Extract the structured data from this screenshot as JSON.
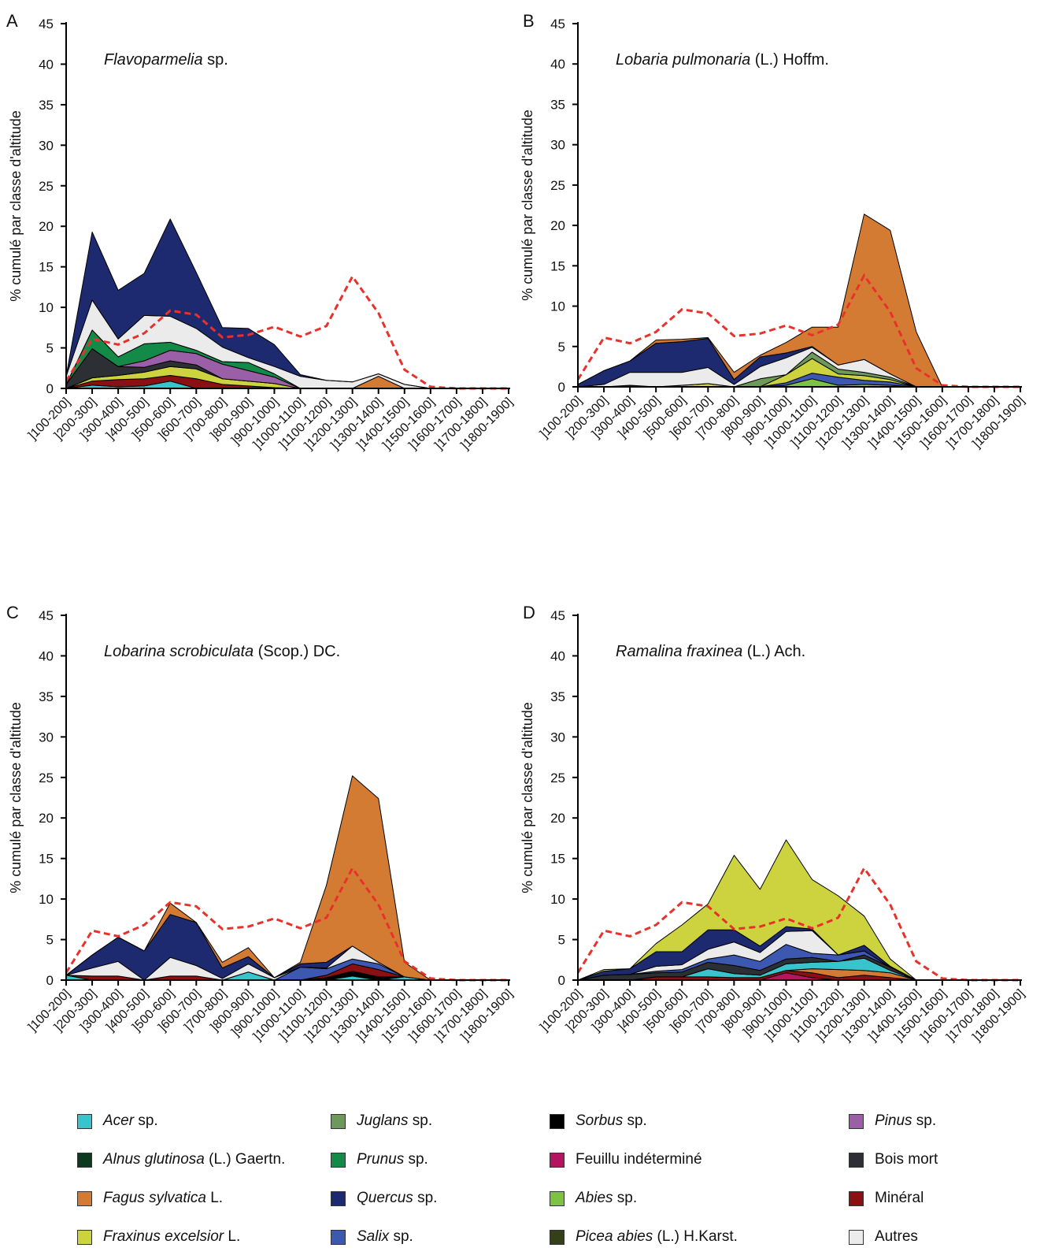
{
  "categories": [
    "]100-200]",
    "]200-300]",
    "]300-400]",
    "]400-500]",
    "]500-600]",
    "]600-700]",
    "]700-800]",
    "]800-900]",
    "]900-1000]",
    "]1000-1100]",
    "]1100-1200]",
    "]1200-1300]",
    "]1300-1400]",
    "]1400-1500]",
    "]1500-1600]",
    "]1600-1700]",
    "]1700-1800]",
    "]1800-1900]"
  ],
  "legend": [
    {
      "key": "acer",
      "italic": "Acer",
      "rest": " sp.",
      "color": "#38c4cc"
    },
    {
      "key": "alnus",
      "italic": "Alnus glutinosa",
      "rest": " (L.) Gaertn.",
      "color": "#0b3a1e"
    },
    {
      "key": "fagus",
      "italic": "Fagus sylvatica",
      "rest": " L.",
      "color": "#d47b33"
    },
    {
      "key": "fraxinus",
      "italic": "Fraxinus excelsior",
      "rest": " L.",
      "color": "#ccd33f"
    },
    {
      "key": "juglans",
      "italic": "Juglans",
      "rest": " sp.",
      "color": "#6d9a5a"
    },
    {
      "key": "prunus",
      "italic": "Prunus",
      "rest": " sp.",
      "color": "#148a49"
    },
    {
      "key": "quercus",
      "italic": "Quercus",
      "rest": " sp.",
      "color": "#1d2a6f"
    },
    {
      "key": "salix",
      "italic": "Salix",
      "rest": " sp.",
      "color": "#3c58b0"
    },
    {
      "key": "sorbus",
      "italic": "Sorbus",
      "rest": " sp.",
      "color": "#000000"
    },
    {
      "key": "feuillu",
      "italic": "",
      "rest": "Feuillu indéterminé",
      "color": "#b4155f"
    },
    {
      "key": "abies",
      "italic": "Abies",
      "rest": " sp.",
      "color": "#7dc242"
    },
    {
      "key": "picea",
      "italic": "Picea abies",
      "rest": " (L.) H.Karst.",
      "color": "#34401a"
    },
    {
      "key": "pinus",
      "italic": "Pinus",
      "rest": " sp.",
      "color": "#9b5fa8"
    },
    {
      "key": "bois",
      "italic": "",
      "rest": "Bois mort",
      "color": "#2c2f33"
    },
    {
      "key": "mineral",
      "italic": "",
      "rest": "Minéral",
      "color": "#8b1013"
    },
    {
      "key": "autres",
      "italic": "",
      "rest": "Autres",
      "color": "#ebebeb"
    }
  ],
  "reference_line": {
    "color": "#e8312b",
    "style": "dashed"
  },
  "chart_data": [
    {
      "panel": "A",
      "type": "area",
      "stacked": true,
      "title_italic": "Flavoparmelia",
      "title_rest": " sp.",
      "ylabel": "% cumulé par classe d'altitude",
      "ylim": [
        0,
        45
      ],
      "yticks": [
        0,
        5,
        10,
        15,
        20,
        25,
        30,
        35,
        40,
        45
      ],
      "series": [
        {
          "key": "acer",
          "values": [
            0,
            0.4,
            0.2,
            0.3,
            0.9,
            0,
            0,
            0,
            0,
            0,
            0,
            0,
            0,
            0,
            0,
            0,
            0,
            0
          ]
        },
        {
          "key": "mineral",
          "values": [
            0,
            0.5,
            0.9,
            0.9,
            0.7,
            1.2,
            0.5,
            0.3,
            0.1,
            0,
            0,
            0,
            0,
            0,
            0,
            0,
            0,
            0
          ]
        },
        {
          "key": "fraxinus",
          "values": [
            0,
            0.4,
            0.5,
            0.8,
            1.1,
            1.2,
            0.7,
            0.6,
            0.5,
            0,
            0,
            0,
            0,
            0,
            0,
            0,
            0,
            0
          ]
        },
        {
          "key": "bois",
          "values": [
            0.5,
            3.6,
            1.1,
            0.6,
            0.7,
            0.5,
            0,
            0,
            0,
            0,
            0,
            0,
            0,
            0,
            0,
            0,
            0,
            0
          ]
        },
        {
          "key": "pinus",
          "values": [
            0,
            0,
            0,
            0.8,
            1.3,
            1.4,
            1.8,
            1.3,
            0.8,
            0,
            0,
            0,
            0,
            0,
            0,
            0,
            0,
            0
          ]
        },
        {
          "key": "prunus",
          "values": [
            0,
            2.3,
            1.2,
            2.1,
            1.0,
            0.4,
            0.3,
            1.0,
            0.4,
            0,
            0,
            0,
            0,
            0,
            0,
            0,
            0,
            0
          ]
        },
        {
          "key": "fagus",
          "values": [
            0,
            0,
            0,
            0,
            0,
            0,
            0,
            0,
            0,
            0,
            0,
            0,
            1.5,
            0,
            0,
            0,
            0,
            0
          ]
        },
        {
          "key": "autres",
          "values": [
            1.0,
            3.7,
            2.2,
            3.5,
            3.2,
            2.7,
            1.8,
            0.6,
            0.9,
            1.5,
            1.0,
            0.8,
            0.3,
            0.5,
            0,
            0,
            0,
            0
          ]
        },
        {
          "key": "quercus",
          "values": [
            0,
            8.4,
            6.0,
            5.2,
            12.0,
            6.9,
            2.4,
            3.6,
            2.7,
            0.2,
            0,
            0,
            0,
            0,
            0,
            0,
            0,
            0
          ]
        }
      ],
      "reference": [
        0.9,
        6.1,
        5.4,
        6.8,
        9.6,
        9.1,
        6.3,
        6.6,
        7.6,
        6.4,
        7.7,
        13.8,
        9.3,
        2.3,
        0.2,
        0,
        0,
        0
      ]
    },
    {
      "panel": "B",
      "type": "area",
      "stacked": true,
      "title_italic": "Lobaria pulmonaria",
      "title_rest": " (L.) Hoffm.",
      "ylabel": "% cumulé par classe d'altitude",
      "ylim": [
        0,
        45
      ],
      "yticks": [
        0,
        5,
        10,
        15,
        20,
        25,
        30,
        35,
        40,
        45
      ],
      "series": [
        {
          "key": "abies",
          "values": [
            0,
            0,
            0,
            0,
            0,
            0,
            0,
            0,
            0.2,
            1.0,
            0.2,
            0.3,
            0.2,
            0,
            0,
            0,
            0,
            0
          ]
        },
        {
          "key": "salix",
          "values": [
            0,
            0,
            0.2,
            0,
            0,
            0,
            0,
            0,
            0.3,
            0.7,
            1.0,
            0.5,
            0.4,
            0,
            0,
            0,
            0,
            0
          ]
        },
        {
          "key": "fraxinus",
          "values": [
            0,
            0,
            0,
            0,
            0.2,
            0.4,
            0,
            0,
            1.0,
            1.8,
            0.4,
            0.6,
            0.3,
            0,
            0,
            0,
            0,
            0
          ]
        },
        {
          "key": "juglans",
          "values": [
            0,
            0,
            0,
            0,
            0,
            0,
            0,
            1.0,
            0,
            0.8,
            0.6,
            0.4,
            0.3,
            0,
            0,
            0,
            0,
            0
          ]
        },
        {
          "key": "autres",
          "values": [
            0,
            0.3,
            1.6,
            1.8,
            1.6,
            2.0,
            0.3,
            1.5,
            2.1,
            0.6,
            0.5,
            1.6,
            0.4,
            0,
            0,
            0,
            0,
            0
          ]
        },
        {
          "key": "quercus",
          "values": [
            0.3,
            1.7,
            1.4,
            3.6,
            3.8,
            3.6,
            0.6,
            1.2,
            0.6,
            0.1,
            0,
            0,
            0,
            0,
            0,
            0,
            0,
            0
          ]
        },
        {
          "key": "fagus",
          "values": [
            0,
            0,
            0,
            0.4,
            0.3,
            0.1,
            0.9,
            0.2,
            1.3,
            2.4,
            4.7,
            18.0,
            17.8,
            6.8,
            0,
            0,
            0,
            0
          ]
        }
      ],
      "reference": [
        0.9,
        6.1,
        5.4,
        6.8,
        9.6,
        9.1,
        6.3,
        6.6,
        7.6,
        6.4,
        7.7,
        13.8,
        9.3,
        2.3,
        0.2,
        0,
        0,
        0
      ]
    },
    {
      "panel": "C",
      "type": "area",
      "stacked": true,
      "title_italic": "Lobarina scrobiculata",
      "title_rest": " (Scop.) DC.",
      "ylabel": "% cumulé par classe d'altitude",
      "ylim": [
        0,
        45
      ],
      "yticks": [
        0,
        5,
        10,
        15,
        20,
        25,
        30,
        35,
        40,
        45
      ],
      "series": [
        {
          "key": "acer",
          "values": [
            0.6,
            0,
            0,
            0,
            0,
            0,
            0,
            1.0,
            0,
            0,
            0,
            0.5,
            0,
            0.4,
            0,
            0,
            0,
            0
          ]
        },
        {
          "key": "sorbus",
          "values": [
            0,
            0,
            0,
            0,
            0,
            0,
            0,
            0,
            0,
            0,
            0.3,
            0.6,
            0.4,
            0,
            0,
            0,
            0,
            0
          ]
        },
        {
          "key": "mineral",
          "values": [
            0,
            0.5,
            0.5,
            0,
            0.5,
            0.5,
            0,
            0,
            0,
            0,
            0.3,
            0.9,
            0.9,
            0,
            0,
            0,
            0,
            0
          ]
        },
        {
          "key": "salix",
          "values": [
            0,
            0,
            0,
            0,
            0,
            0,
            0,
            0,
            0,
            1.6,
            0.8,
            0.6,
            0.7,
            0,
            0,
            0,
            0,
            0
          ]
        },
        {
          "key": "autres",
          "values": [
            0,
            1.0,
            1.8,
            0,
            2.3,
            1.3,
            0.2,
            1.0,
            0.3,
            0,
            0.1,
            1.6,
            0.2,
            0,
            0,
            0,
            0,
            0
          ]
        },
        {
          "key": "quercus",
          "values": [
            0,
            1.6,
            3.0,
            3.6,
            5.3,
            5.3,
            1.3,
            0.9,
            0,
            0.4,
            0.7,
            0,
            0,
            0,
            0,
            0,
            0,
            0
          ]
        },
        {
          "key": "fagus",
          "values": [
            0,
            0,
            0,
            0,
            1.4,
            0,
            0.7,
            1.1,
            0,
            0.2,
            9.5,
            21.0,
            20.2,
            1.8,
            0,
            0,
            0,
            0
          ]
        }
      ],
      "reference": [
        0.9,
        6.1,
        5.4,
        6.8,
        9.6,
        9.1,
        6.3,
        6.6,
        7.6,
        6.4,
        7.7,
        13.8,
        9.3,
        2.3,
        0.2,
        0,
        0,
        0
      ]
    },
    {
      "panel": "D",
      "type": "area",
      "stacked": true,
      "title_italic": "Ramalina fraxinea",
      "title_rest": " (L.) Ach.",
      "ylabel": "% cumulé par classe d'altitude",
      "ylim": [
        0,
        45
      ],
      "yticks": [
        0,
        5,
        10,
        15,
        20,
        25,
        30,
        35,
        40,
        45
      ],
      "series": [
        {
          "key": "feuillu",
          "values": [
            0,
            0,
            0,
            0,
            0,
            0,
            0,
            0,
            0.9,
            0.3,
            0,
            0,
            0,
            0,
            0,
            0,
            0,
            0
          ]
        },
        {
          "key": "mineral",
          "values": [
            0,
            0,
            0,
            0.4,
            0.4,
            0.4,
            0.3,
            0.3,
            0.3,
            0.6,
            0.3,
            0.6,
            0.3,
            0,
            0,
            0,
            0,
            0
          ]
        },
        {
          "key": "fagus",
          "values": [
            0,
            0,
            0,
            0,
            0,
            0,
            0,
            0,
            0,
            0.5,
            1.0,
            0.6,
            0.6,
            0,
            0,
            0,
            0,
            0
          ]
        },
        {
          "key": "acer",
          "values": [
            0,
            0,
            0,
            0,
            0,
            1.0,
            0.5,
            0.3,
            0.8,
            0.8,
            1.0,
            1.5,
            0.3,
            0,
            0,
            0,
            0,
            0
          ]
        },
        {
          "key": "bois",
          "values": [
            0,
            0.6,
            0.7,
            0.5,
            0.6,
            0.8,
            1.0,
            0.6,
            0.6,
            0.6,
            0,
            0.4,
            0.4,
            0,
            0,
            0,
            0,
            0
          ]
        },
        {
          "key": "salix",
          "values": [
            0,
            0,
            0,
            0.2,
            0.3,
            0.4,
            1.3,
            1.1,
            1.8,
            0.5,
            0.8,
            0.5,
            0,
            0,
            0,
            0,
            0,
            0
          ]
        },
        {
          "key": "autres",
          "values": [
            0,
            0,
            0,
            0.6,
            0.6,
            1.2,
            1.6,
            1.1,
            1.6,
            2.8,
            0,
            0,
            0,
            0,
            0,
            0,
            0,
            0
          ]
        },
        {
          "key": "quercus",
          "values": [
            0,
            0.5,
            0.7,
            1.8,
            1.6,
            2.4,
            1.5,
            0.8,
            0.6,
            0.2,
            0,
            0.7,
            0.1,
            0,
            0,
            0,
            0,
            0
          ]
        },
        {
          "key": "fraxinus",
          "values": [
            0,
            0.2,
            0,
            1.0,
            3.3,
            3.2,
            9.2,
            7.0,
            10.7,
            6.1,
            7.3,
            3.6,
            0.9,
            0,
            0,
            0,
            0,
            0
          ]
        }
      ],
      "reference": [
        0.9,
        6.1,
        5.4,
        6.8,
        9.6,
        9.1,
        6.3,
        6.6,
        7.6,
        6.4,
        7.7,
        13.8,
        9.3,
        2.3,
        0.2,
        0,
        0,
        0
      ]
    }
  ]
}
